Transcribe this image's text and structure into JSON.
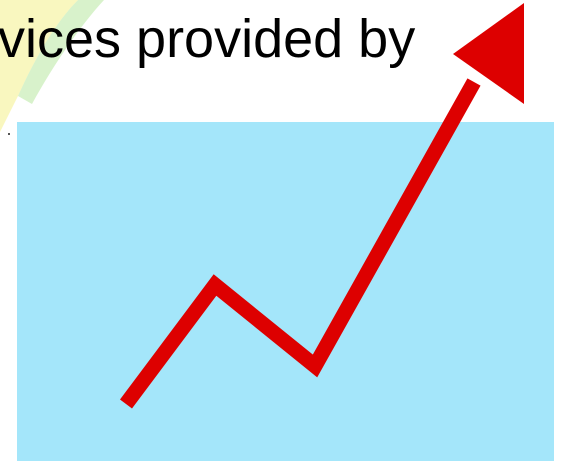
{
  "slide": {
    "heading": "vices provided by"
  },
  "colors": {
    "panel_background": "#a4e6fa",
    "arrow": "#dd0000",
    "accent_yellow": "#f4f08a",
    "accent_green": "#b8e8a0"
  },
  "icons": {
    "growth_arrow": "rising-trend-arrow-icon"
  }
}
